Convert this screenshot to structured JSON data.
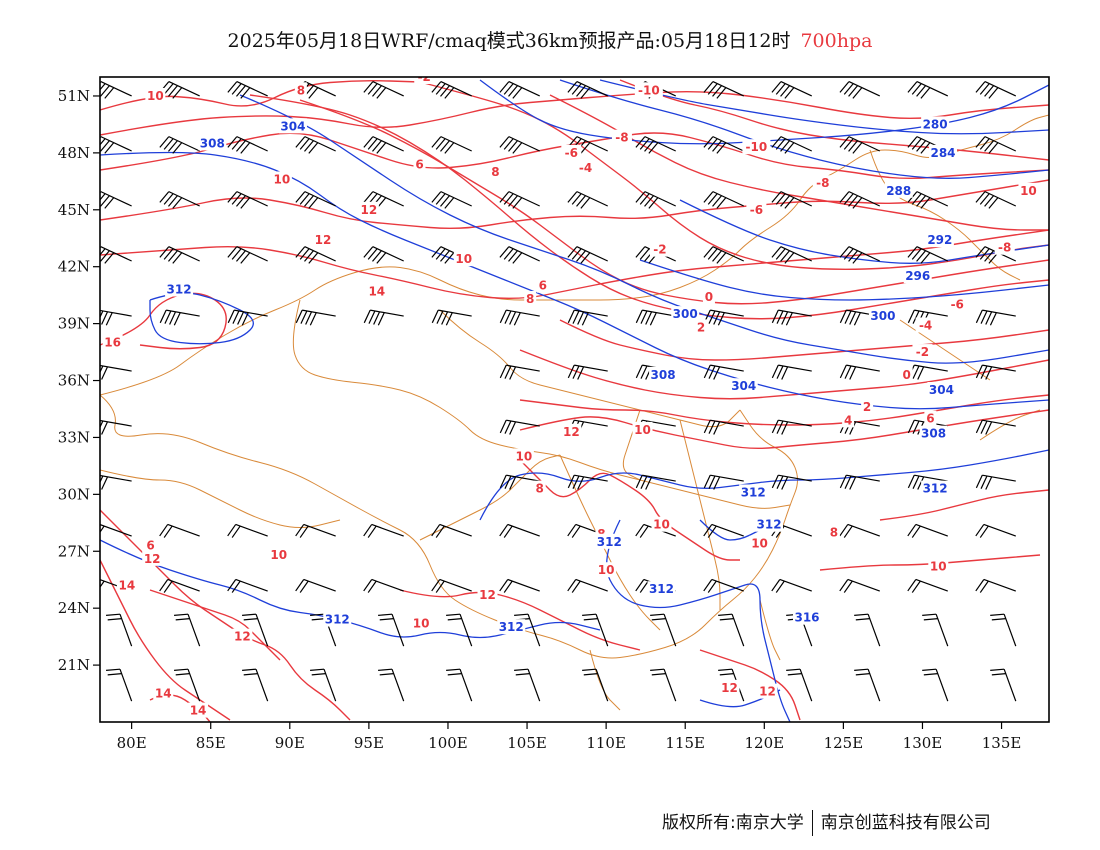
{
  "title": {
    "main": "2025年05月18日WRF/cmaq模式36km预报产品:05月18日12时",
    "level": "700hpa"
  },
  "colors": {
    "temperature": "#e8393f",
    "geopotential": "#1f3fd9",
    "border": "#d98a3a",
    "wind_barb": "#000000"
  },
  "map": {
    "lon_range": [
      78,
      138
    ],
    "lat_range": [
      18,
      52
    ],
    "x_ticks": [
      "80E",
      "85E",
      "90E",
      "95E",
      "100E",
      "105E",
      "110E",
      "115E",
      "120E",
      "125E",
      "130E",
      "135E"
    ],
    "x_tick_values": [
      80,
      85,
      90,
      95,
      100,
      105,
      110,
      115,
      120,
      125,
      130,
      135
    ],
    "y_ticks": [
      "51N",
      "48N",
      "45N",
      "42N",
      "39N",
      "36N",
      "33N",
      "30N",
      "27N",
      "24N",
      "21N"
    ],
    "y_tick_values": [
      51,
      48,
      45,
      42,
      39,
      36,
      33,
      30,
      27,
      24,
      21
    ],
    "temperature_labels": [
      {
        "text": "10",
        "lon": 81.5,
        "lat": 51.0
      },
      {
        "text": "8",
        "lon": 90.7,
        "lat": 51.3
      },
      {
        "text": "-2",
        "lon": 98.5,
        "lat": 52.0
      },
      {
        "text": "-10",
        "lon": 112.7,
        "lat": 51.3
      },
      {
        "text": "-8",
        "lon": 111.0,
        "lat": 48.8
      },
      {
        "text": "-10",
        "lon": 119.5,
        "lat": 48.3
      },
      {
        "text": "-6",
        "lon": 107.8,
        "lat": 48.0
      },
      {
        "text": "-4",
        "lon": 108.7,
        "lat": 47.2
      },
      {
        "text": "6",
        "lon": 98.2,
        "lat": 47.4
      },
      {
        "text": "8",
        "lon": 103.0,
        "lat": 47.0
      },
      {
        "text": "10",
        "lon": 89.5,
        "lat": 46.6
      },
      {
        "text": "12",
        "lon": 95.0,
        "lat": 45.0
      },
      {
        "text": "12",
        "lon": 92.1,
        "lat": 43.4
      },
      {
        "text": "-8",
        "lon": 123.7,
        "lat": 46.4
      },
      {
        "text": "-6",
        "lon": 119.5,
        "lat": 45.0
      },
      {
        "text": "10",
        "lon": 136.7,
        "lat": 46.0
      },
      {
        "text": "-2",
        "lon": 113.4,
        "lat": 42.9
      },
      {
        "text": "10",
        "lon": 101.0,
        "lat": 42.4
      },
      {
        "text": "14",
        "lon": 95.5,
        "lat": 40.7
      },
      {
        "text": "6",
        "lon": 106.0,
        "lat": 41.0
      },
      {
        "text": "8",
        "lon": 105.2,
        "lat": 40.3
      },
      {
        "text": "-8",
        "lon": 135.2,
        "lat": 43.0
      },
      {
        "text": "0",
        "lon": 116.5,
        "lat": 40.4
      },
      {
        "text": "-6",
        "lon": 132.2,
        "lat": 40.0
      },
      {
        "text": "2",
        "lon": 116.0,
        "lat": 38.8
      },
      {
        "text": "-4",
        "lon": 130.2,
        "lat": 38.9
      },
      {
        "text": "-2",
        "lon": 130.0,
        "lat": 37.5
      },
      {
        "text": "0",
        "lon": 129.0,
        "lat": 36.3
      },
      {
        "text": "2",
        "lon": 126.5,
        "lat": 34.6
      },
      {
        "text": "4",
        "lon": 125.3,
        "lat": 33.9
      },
      {
        "text": "6",
        "lon": 130.5,
        "lat": 34.0
      },
      {
        "text": "16",
        "lon": 78.8,
        "lat": 38.0
      },
      {
        "text": "12",
        "lon": 107.8,
        "lat": 33.3
      },
      {
        "text": "10",
        "lon": 112.3,
        "lat": 33.4
      },
      {
        "text": "10",
        "lon": 104.8,
        "lat": 32.0
      },
      {
        "text": "8",
        "lon": 105.8,
        "lat": 30.3
      },
      {
        "text": "10",
        "lon": 113.5,
        "lat": 28.4
      },
      {
        "text": "8",
        "lon": 109.7,
        "lat": 27.9
      },
      {
        "text": "8",
        "lon": 124.4,
        "lat": 28.0
      },
      {
        "text": "10",
        "lon": 119.7,
        "lat": 27.4
      },
      {
        "text": "6",
        "lon": 81.2,
        "lat": 27.3
      },
      {
        "text": "12",
        "lon": 81.3,
        "lat": 26.6
      },
      {
        "text": "10",
        "lon": 89.3,
        "lat": 26.8
      },
      {
        "text": "14",
        "lon": 79.7,
        "lat": 25.2
      },
      {
        "text": "12",
        "lon": 87.0,
        "lat": 22.5
      },
      {
        "text": "10",
        "lon": 110.0,
        "lat": 26.0
      },
      {
        "text": "10",
        "lon": 131.0,
        "lat": 26.2
      },
      {
        "text": "12",
        "lon": 102.5,
        "lat": 24.7
      },
      {
        "text": "10",
        "lon": 98.3,
        "lat": 23.2
      },
      {
        "text": "14",
        "lon": 82.0,
        "lat": 19.5
      },
      {
        "text": "14",
        "lon": 84.2,
        "lat": 18.6
      },
      {
        "text": "12",
        "lon": 117.8,
        "lat": 19.8
      },
      {
        "text": "12",
        "lon": 120.2,
        "lat": 19.6
      }
    ],
    "geopotential_labels": [
      {
        "text": "304",
        "lon": 90.2,
        "lat": 49.4
      },
      {
        "text": "308",
        "lon": 85.1,
        "lat": 48.5
      },
      {
        "text": "280",
        "lon": 130.8,
        "lat": 49.5
      },
      {
        "text": "284",
        "lon": 131.3,
        "lat": 48.0
      },
      {
        "text": "288",
        "lon": 128.5,
        "lat": 46.0
      },
      {
        "text": "292",
        "lon": 131.1,
        "lat": 43.4
      },
      {
        "text": "296",
        "lon": 129.7,
        "lat": 41.5
      },
      {
        "text": "312",
        "lon": 83.0,
        "lat": 40.8
      },
      {
        "text": "300",
        "lon": 115.0,
        "lat": 39.5
      },
      {
        "text": "300",
        "lon": 127.5,
        "lat": 39.4
      },
      {
        "text": "304",
        "lon": 118.7,
        "lat": 35.7
      },
      {
        "text": "304",
        "lon": 131.2,
        "lat": 35.5
      },
      {
        "text": "308",
        "lon": 113.6,
        "lat": 36.3
      },
      {
        "text": "308",
        "lon": 130.7,
        "lat": 33.2
      },
      {
        "text": "312",
        "lon": 119.3,
        "lat": 30.1
      },
      {
        "text": "312",
        "lon": 130.8,
        "lat": 30.3
      },
      {
        "text": "312",
        "lon": 120.3,
        "lat": 28.4
      },
      {
        "text": "312",
        "lon": 110.2,
        "lat": 27.5
      },
      {
        "text": "312",
        "lon": 113.5,
        "lat": 25.0
      },
      {
        "text": "312",
        "lon": 93.0,
        "lat": 23.4
      },
      {
        "text": "312",
        "lon": 104.0,
        "lat": 23.0
      },
      {
        "text": "316",
        "lon": 122.7,
        "lat": 23.5
      }
    ]
  },
  "copyright": {
    "left": "版权所有:南京大学",
    "right": "南京创蓝科技有限公司"
  }
}
